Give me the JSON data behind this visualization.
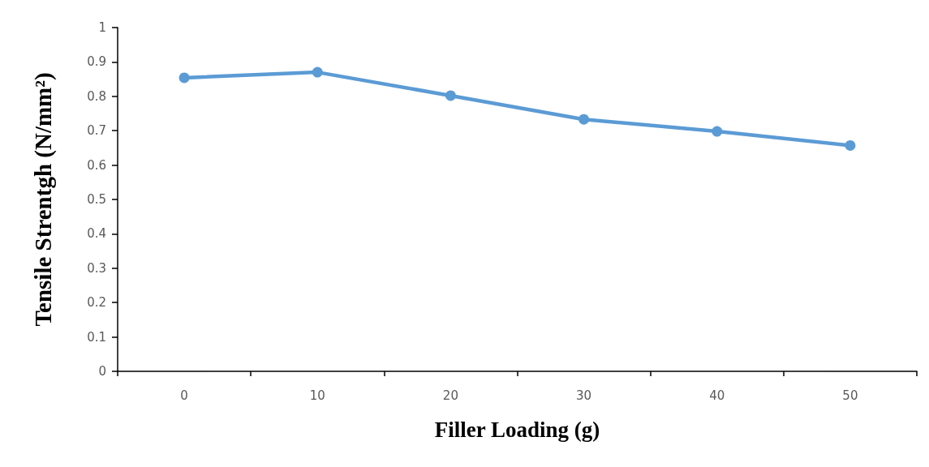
{
  "chart_data": {
    "type": "line",
    "xlabel": "Filler Loading (g)",
    "ylabel": "Tensile Strentgh (N/mm²)",
    "categories": [
      "0",
      "10",
      "20",
      "30",
      "40",
      "50"
    ],
    "series": [
      {
        "color": "#5b9bd5",
        "values": [
          0.854,
          0.87,
          0.802,
          0.733,
          0.698,
          0.657
        ]
      }
    ],
    "ylim": [
      0,
      1
    ],
    "yticks": [
      0,
      0.1,
      0.2,
      0.3,
      0.4,
      0.5,
      0.6,
      0.7,
      0.8,
      0.9,
      1
    ],
    "grid": false,
    "marker": "circle",
    "line_style": "solid"
  }
}
